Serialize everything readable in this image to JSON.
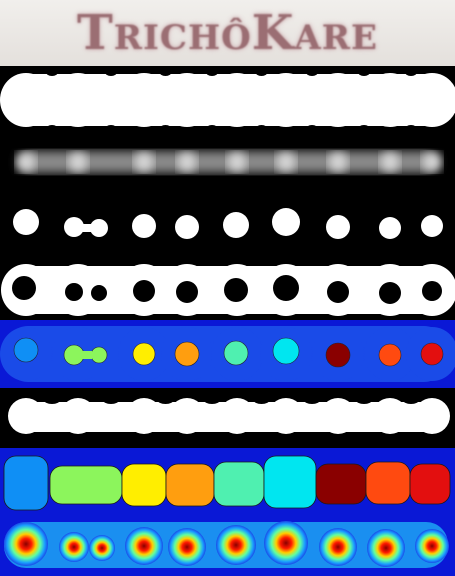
{
  "banner": {
    "logo_text": "TrichôKare"
  },
  "panels": [
    {
      "id": "binary-mask",
      "kind": "fused-mask"
    },
    {
      "id": "blurred-mask",
      "kind": "blurred-mask"
    },
    {
      "id": "seed-markers",
      "kind": "seeds"
    },
    {
      "id": "ring-markers",
      "kind": "rings"
    },
    {
      "id": "labeled-seeds",
      "kind": "labeled-seeds"
    },
    {
      "id": "eroded-mask",
      "kind": "fused-mask-thin"
    },
    {
      "id": "watershed-segments",
      "kind": "segments"
    },
    {
      "id": "distance-heatmap",
      "kind": "heatmap"
    }
  ],
  "segment_colors": [
    "#0f8ff5",
    "#8cf55c",
    "#ffee00",
    "#ff9e0f",
    "#4ff0b0",
    "#00e6f0",
    "#8a0000",
    "#ff4a10",
    "#e30f0f"
  ],
  "background_colors": {
    "dark": "#000000",
    "map_bg": "#0a18d6",
    "map_mid": "#1a4be8",
    "banner": "#efece8"
  }
}
